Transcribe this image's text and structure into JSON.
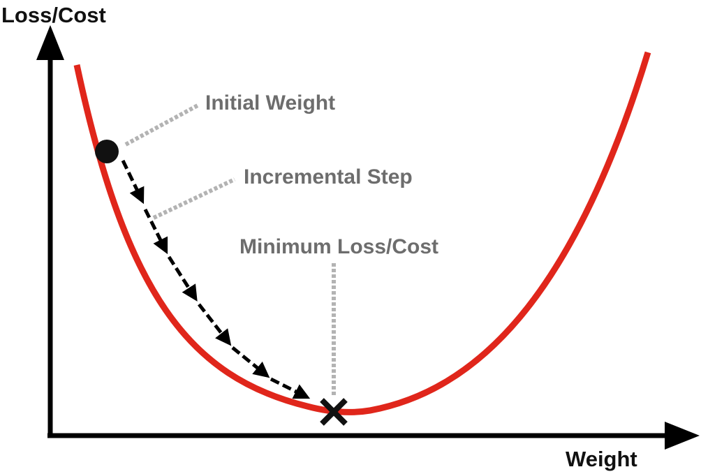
{
  "axes": {
    "y_label": "Loss/Cost",
    "x_label": "Weight"
  },
  "annotations": {
    "initial_weight": "Initial Weight",
    "incremental_step": "Incremental Step",
    "minimum": "Minimum Loss/Cost"
  },
  "colors": {
    "curve": "#e0261b",
    "axis": "#000000",
    "steps": "#000000",
    "leader": "#b3b3b3",
    "callout_text": "#6d6d6d"
  },
  "steps": {
    "count": 6
  }
}
